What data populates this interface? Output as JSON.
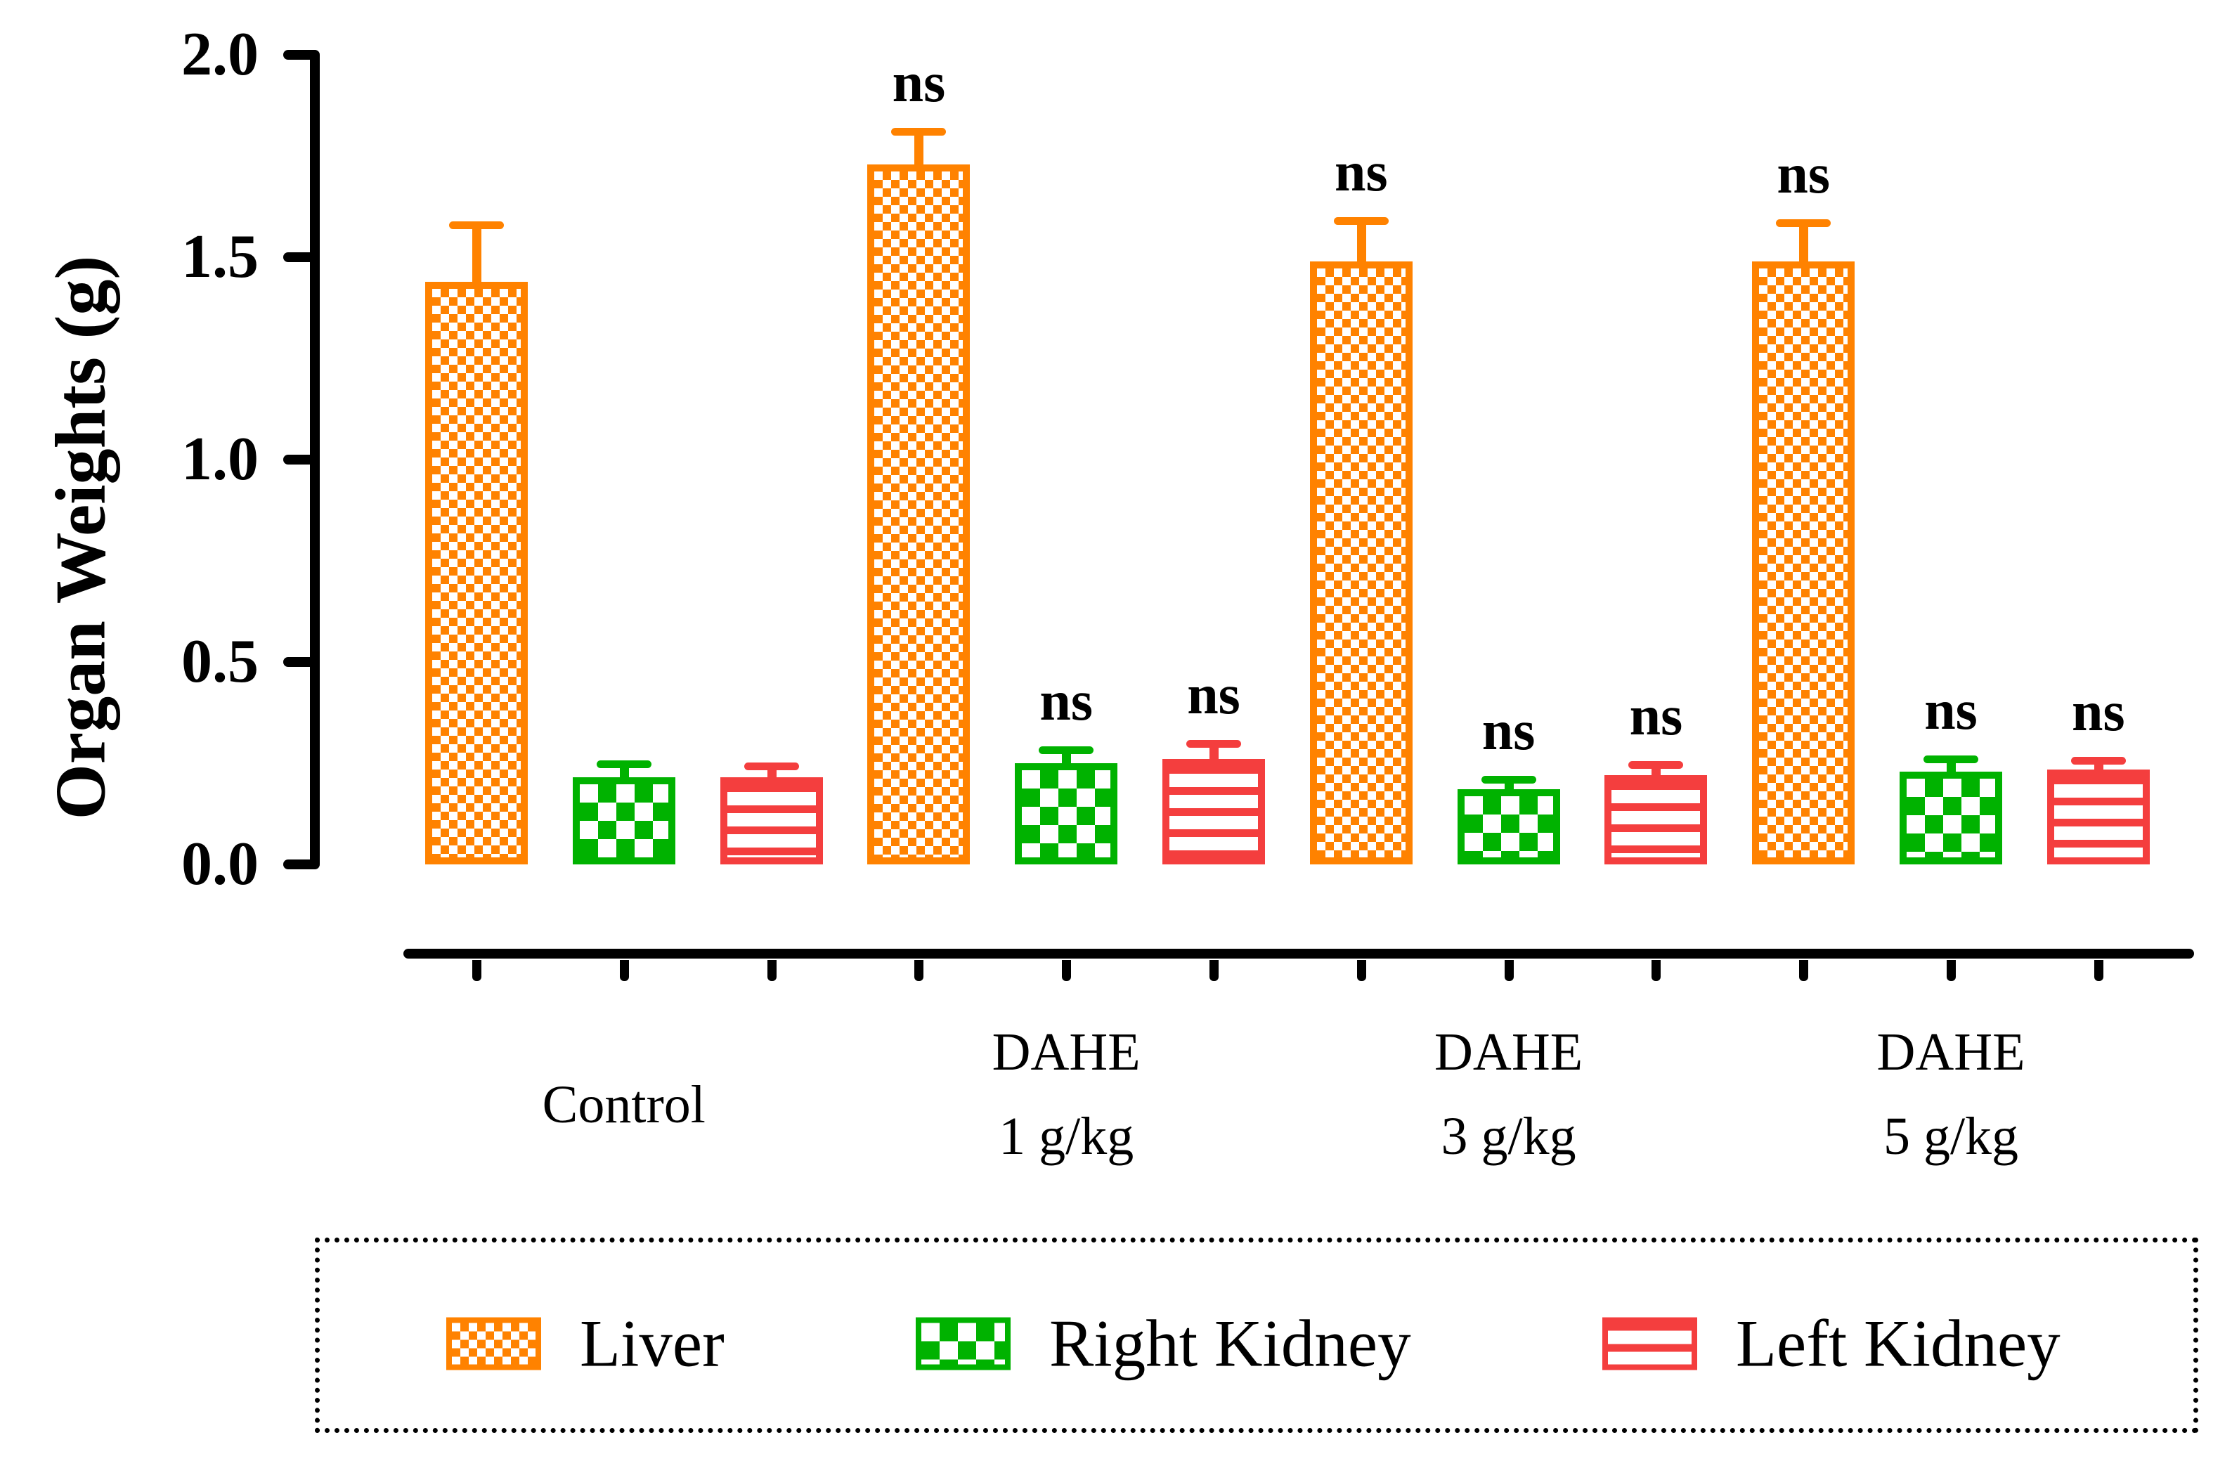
{
  "y_axis_title": "Organ Weights (g)",
  "significance_label": "ns",
  "colors": {
    "liver": "#FF8200",
    "right_kidney": "#00B200",
    "left_kidney": "#F43E3E",
    "axis": "#000000"
  },
  "legend": {
    "items": [
      {
        "label": "Liver",
        "color": "#FF8200",
        "pattern": "checker-fine"
      },
      {
        "label": "Right Kidney",
        "color": "#00B200",
        "pattern": "checker-coarse"
      },
      {
        "label": "Left Kidney",
        "color": "#F43E3E",
        "pattern": "hstripes"
      }
    ]
  },
  "chart_data": {
    "type": "bar",
    "title": "",
    "xlabel": "",
    "ylabel": "Organ Weights (g)",
    "ylim": [
      0.0,
      2.0
    ],
    "yticks": [
      0.0,
      0.5,
      1.0,
      1.5,
      2.0
    ],
    "ytick_labels": [
      "0.0",
      "0.5",
      "1.0",
      "1.5",
      "2.0"
    ],
    "grid": false,
    "legend_position": "bottom",
    "error_bars": "sem, upper only",
    "categories": [
      "Control",
      "DAHE 1 g/kg",
      "DAHE 3 g/kg",
      "DAHE 5 g/kg"
    ],
    "category_label_lines": [
      [
        "Control"
      ],
      [
        "DAHE",
        "1 g/kg"
      ],
      [
        "DAHE",
        "3 g/kg"
      ],
      [
        "DAHE",
        "5 g/kg"
      ]
    ],
    "series": [
      {
        "name": "Liver",
        "color": "#FF8200",
        "pattern": "checker-fine",
        "values": [
          1.44,
          1.73,
          1.49,
          1.49
        ],
        "errors": [
          0.13,
          0.07,
          0.09,
          0.085
        ],
        "annotations": [
          "",
          "ns",
          "ns",
          "ns"
        ]
      },
      {
        "name": "Right Kidney",
        "color": "#00B200",
        "pattern": "checker-coarse",
        "values": [
          0.215,
          0.25,
          0.185,
          0.23
        ],
        "errors": [
          0.023,
          0.022,
          0.015,
          0.02
        ],
        "annotations": [
          "",
          "ns",
          "ns",
          "ns"
        ]
      },
      {
        "name": "Left Kidney",
        "color": "#F43E3E",
        "pattern": "hstripes",
        "values": [
          0.215,
          0.26,
          0.22,
          0.235
        ],
        "errors": [
          0.018,
          0.028,
          0.016,
          0.012
        ],
        "annotations": [
          "",
          "ns",
          "ns",
          "ns"
        ]
      }
    ]
  }
}
